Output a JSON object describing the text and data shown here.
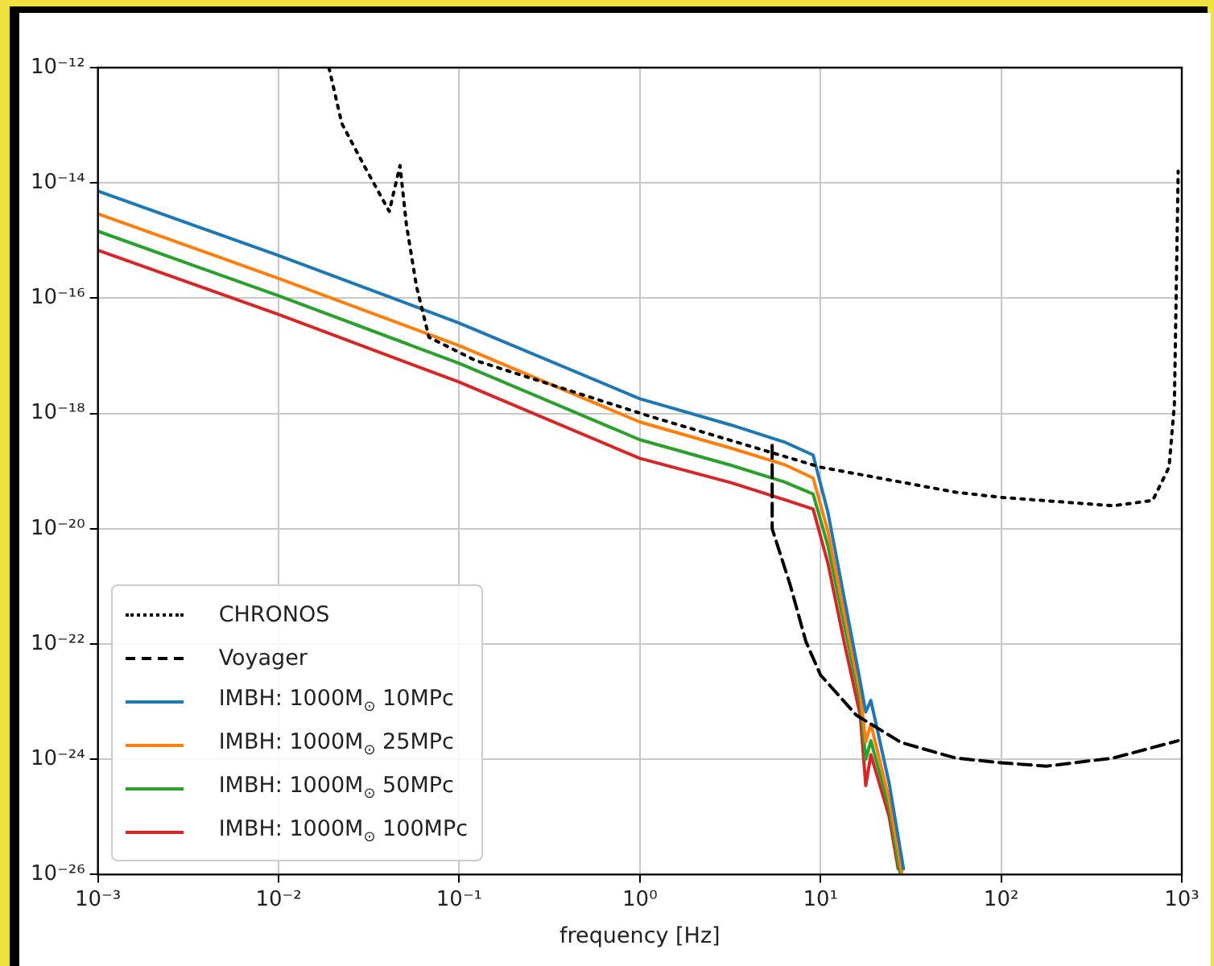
{
  "chart_data": {
    "type": "line",
    "xlabel": "frequency [Hz]",
    "log": "xy",
    "grid": true,
    "legend": "bottom left",
    "marker": "none",
    "xlim": [
      0.001,
      1000
    ],
    "ylim": [
      1e-26,
      1e-12
    ],
    "xticks": [
      {
        "value": 0.001,
        "label": "10⁻³"
      },
      {
        "value": 0.01,
        "label": "10⁻²"
      },
      {
        "value": 0.1,
        "label": "10⁻¹"
      },
      {
        "value": 1,
        "label": "10⁰"
      },
      {
        "value": 10,
        "label": "10¹"
      },
      {
        "value": 100,
        "label": "10²"
      },
      {
        "value": 1000,
        "label": "10³"
      }
    ],
    "yticks": [
      {
        "value": 1e-26,
        "label": "10⁻²⁶"
      },
      {
        "value": 1e-24,
        "label": "10⁻²⁴"
      },
      {
        "value": 1e-22,
        "label": "10⁻²²"
      },
      {
        "value": 1e-20,
        "label": "10⁻²⁰"
      },
      {
        "value": 1e-18,
        "label": "10⁻¹⁸"
      },
      {
        "value": 1e-16,
        "label": "10⁻¹⁶"
      },
      {
        "value": 1e-14,
        "label": "10⁻¹⁴"
      },
      {
        "value": 1e-12,
        "label": "10⁻¹²"
      }
    ],
    "series": [
      {
        "name": "CHRONOS",
        "color": "#000000",
        "line_style": "dotted",
        "x": [
          0.019,
          0.0224,
          0.03,
          0.041,
          0.047,
          0.051,
          0.058,
          0.068,
          0.123,
          1.14,
          10,
          56,
          100,
          417,
          690,
          850,
          910,
          955
        ],
        "values": [
          1e-12,
          1.07e-13,
          1.9e-14,
          3.2e-15,
          2e-14,
          1.9e-15,
          1.6e-16,
          2.1e-17,
          8.3e-18,
          8.9e-19,
          1.17e-19,
          4.3e-20,
          3.5e-20,
          2.5e-20,
          3.1e-20,
          1.17e-19,
          1.45e-18,
          1.6e-14
        ]
      },
      {
        "name": "Voyager",
        "color": "#000000",
        "line_style": "dashed",
        "x": [
          5.4,
          5.4,
          6.8,
          8.3,
          10,
          15.8,
          28,
          56,
          100,
          178,
          417,
          955
        ],
        "values": [
          2.8e-19,
          1e-20,
          1.05e-21,
          1.1e-22,
          2.9e-23,
          5.8e-24,
          1.95e-24,
          1.05e-24,
          8.7e-25,
          7.6e-25,
          1.05e-24,
          2.1e-24
        ]
      },
      {
        "name": "IMBH: 1000M$_{⊙}$ 10MPc",
        "color": "#1f77b4",
        "line_style": "solid",
        "x": [
          0.001,
          0.01,
          0.1,
          1,
          3.2,
          6.3,
          9.1,
          11,
          13.5,
          16.6,
          17.8,
          19,
          24,
          28.8
        ],
        "values": [
          7.2e-15,
          5.5e-16,
          3.7e-17,
          1.8e-18,
          6.3e-19,
          3.2e-19,
          1.9e-19,
          1.9e-20,
          6.5e-22,
          2.2e-23,
          6.6e-24,
          1.05e-23,
          3.8e-25,
          1.26e-26
        ]
      },
      {
        "name": "IMBH: 1000M$_{⊙}$ 25MPc",
        "color": "#ff7f0e",
        "line_style": "solid",
        "x": [
          0.001,
          0.01,
          0.1,
          1,
          3.2,
          6.3,
          9.1,
          11,
          13.5,
          16.6,
          17.8,
          19,
          24,
          28.2
        ],
        "values": [
          2.9e-15,
          2.2e-16,
          1.5e-17,
          7.1e-19,
          2.5e-19,
          1.3e-19,
          7.6e-20,
          8.9e-21,
          3.5e-22,
          1.4e-23,
          2e-24,
          4.1e-24,
          2e-25,
          1.1e-26
        ]
      },
      {
        "name": "IMBH: 1000M$_{⊙}$ 50MPc",
        "color": "#2ca02c",
        "line_style": "solid",
        "x": [
          0.001,
          0.01,
          0.1,
          1,
          3.2,
          6.3,
          9.1,
          11,
          13.5,
          16.6,
          17.8,
          19,
          24,
          27.5
        ],
        "values": [
          1.45e-15,
          1.1e-16,
          7.4e-18,
          3.5e-19,
          1.26e-19,
          6.5e-20,
          4e-20,
          5e-21,
          2.2e-22,
          1e-23,
          1e-24,
          2.1e-24,
          1.4e-25,
          1.1e-26
        ]
      },
      {
        "name": "IMBH: 1000M$_{⊙}$ 100MPc",
        "color": "#d62728",
        "line_style": "solid",
        "x": [
          0.001,
          0.01,
          0.1,
          1,
          3.2,
          6.3,
          9.1,
          11,
          13.5,
          16.6,
          17.8,
          19,
          24,
          26.9
        ],
        "values": [
          6.8e-16,
          5.2e-17,
          3.5e-18,
          1.66e-19,
          6.3e-20,
          3.2e-20,
          2.2e-20,
          2.5e-21,
          1.1e-22,
          5.8e-24,
          3.5e-25,
          1.2e-24,
          1e-25,
          1.26e-26
        ]
      }
    ]
  }
}
